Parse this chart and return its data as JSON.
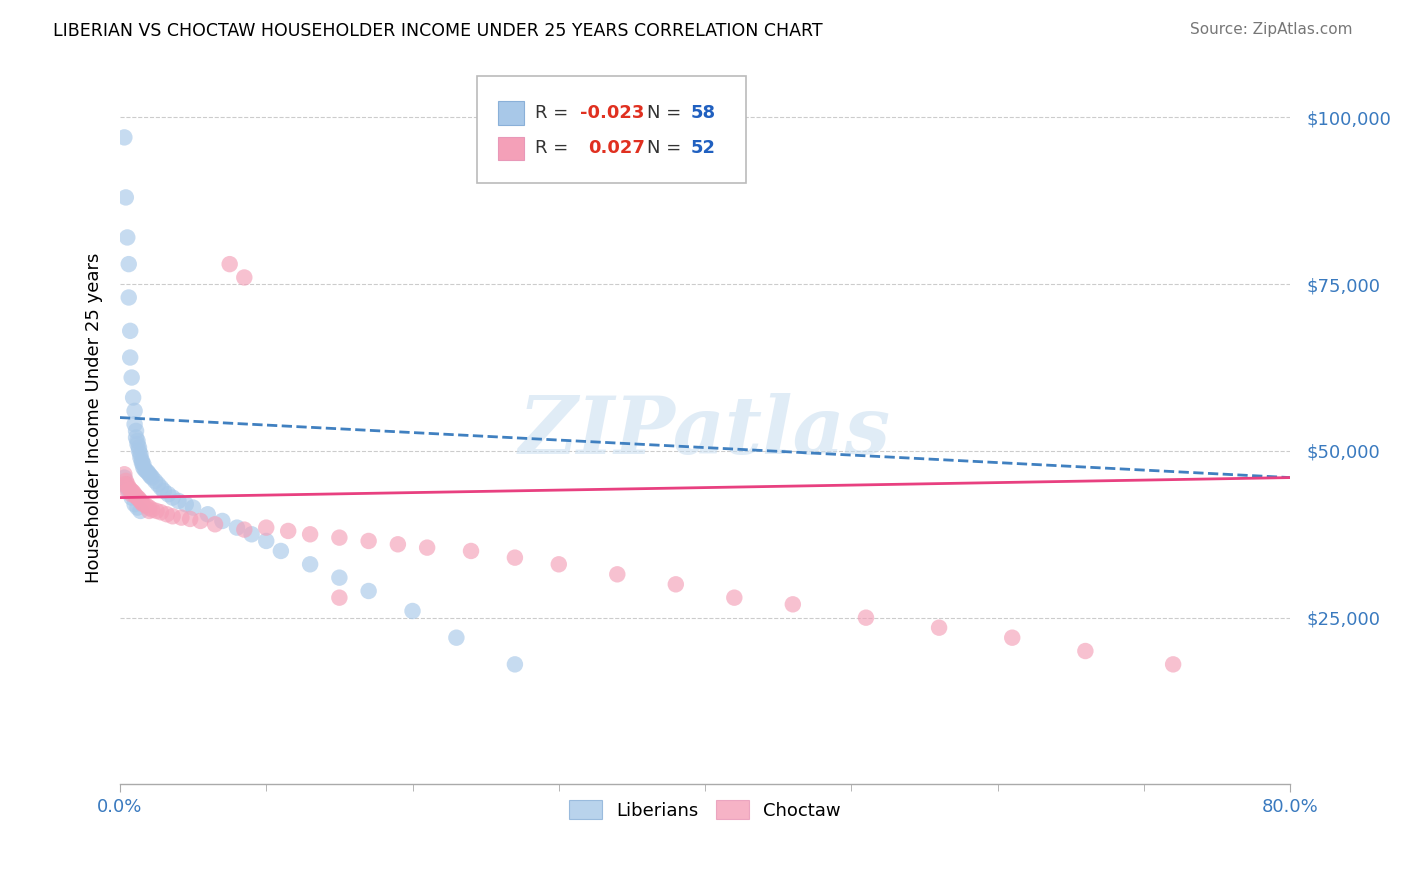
{
  "title": "LIBERIAN VS CHOCTAW HOUSEHOLDER INCOME UNDER 25 YEARS CORRELATION CHART",
  "source": "Source: ZipAtlas.com",
  "ylabel": "Householder Income Under 25 years",
  "xlim": [
    0.0,
    0.8
  ],
  "ylim": [
    0,
    110000
  ],
  "ytick_vals": [
    25000,
    50000,
    75000,
    100000
  ],
  "ytick_labels": [
    "$25,000",
    "$50,000",
    "$75,000",
    "$100,000"
  ],
  "blue_color": "#a8c8e8",
  "pink_color": "#f4a0b8",
  "line_blue_color": "#4080c0",
  "line_pink_color": "#e84080",
  "watermark": "ZIPatlas",
  "legend_r1_text": "R = ",
  "legend_r1_val": "-0.023",
  "legend_n1_text": "N = ",
  "legend_n1_val": "58",
  "legend_r2_text": "R =  ",
  "legend_r2_val": "0.027",
  "legend_n2_text": "N = ",
  "legend_n2_val": "52",
  "lib_x": [
    0.003,
    0.004,
    0.005,
    0.006,
    0.006,
    0.007,
    0.007,
    0.008,
    0.009,
    0.01,
    0.01,
    0.011,
    0.011,
    0.012,
    0.012,
    0.013,
    0.013,
    0.014,
    0.014,
    0.015,
    0.015,
    0.016,
    0.016,
    0.017,
    0.018,
    0.019,
    0.02,
    0.021,
    0.022,
    0.024,
    0.026,
    0.028,
    0.03,
    0.033,
    0.036,
    0.04,
    0.045,
    0.05,
    0.06,
    0.07,
    0.08,
    0.09,
    0.1,
    0.11,
    0.13,
    0.15,
    0.17,
    0.2,
    0.23,
    0.27,
    0.003,
    0.004,
    0.005,
    0.006,
    0.008,
    0.01,
    0.012,
    0.014
  ],
  "lib_y": [
    97000,
    88000,
    82000,
    78000,
    73000,
    68000,
    64000,
    61000,
    58000,
    56000,
    54000,
    53000,
    52000,
    51500,
    51000,
    50500,
    50000,
    49500,
    49000,
    48500,
    48200,
    48000,
    47500,
    47200,
    47000,
    46800,
    46500,
    46200,
    46000,
    45500,
    45000,
    44500,
    44000,
    43500,
    43000,
    42500,
    42000,
    41500,
    40500,
    39500,
    38500,
    37500,
    36500,
    35000,
    33000,
    31000,
    29000,
    26000,
    22000,
    18000,
    46000,
    45000,
    44500,
    44000,
    43000,
    42000,
    41500,
    41000
  ],
  "cho_x": [
    0.003,
    0.004,
    0.005,
    0.006,
    0.007,
    0.008,
    0.009,
    0.01,
    0.011,
    0.012,
    0.013,
    0.014,
    0.015,
    0.016,
    0.018,
    0.02,
    0.022,
    0.025,
    0.028,
    0.032,
    0.036,
    0.042,
    0.048,
    0.055,
    0.065,
    0.075,
    0.085,
    0.1,
    0.115,
    0.13,
    0.15,
    0.17,
    0.19,
    0.21,
    0.24,
    0.27,
    0.3,
    0.34,
    0.38,
    0.42,
    0.46,
    0.51,
    0.56,
    0.61,
    0.66,
    0.72,
    0.003,
    0.005,
    0.008,
    0.02,
    0.085,
    0.15
  ],
  "cho_y": [
    46500,
    45500,
    45000,
    44500,
    44200,
    44000,
    43800,
    43500,
    43200,
    43000,
    42800,
    42500,
    42200,
    42000,
    41800,
    41500,
    41200,
    41000,
    40800,
    40500,
    40200,
    40000,
    39800,
    39500,
    39000,
    78000,
    76000,
    38500,
    38000,
    37500,
    37000,
    36500,
    36000,
    35500,
    35000,
    34000,
    33000,
    31500,
    30000,
    28000,
    27000,
    25000,
    23500,
    22000,
    20000,
    18000,
    45000,
    44000,
    43500,
    41000,
    38200,
    28000
  ]
}
